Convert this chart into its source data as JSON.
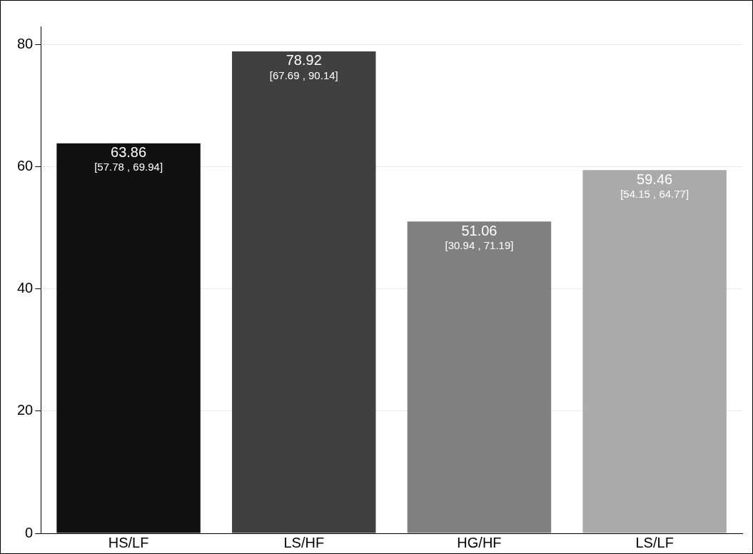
{
  "chart_data": {
    "type": "bar",
    "categories": [
      "HS/LF",
      "LS/HF",
      "HG/HF",
      "LS/LF"
    ],
    "values": [
      63.86,
      78.92,
      51.06,
      59.46
    ],
    "colors": [
      "#111111",
      "#404040",
      "#808080",
      "#aaaaaa"
    ],
    "data_labels": true,
    "annotations": [
      {
        "text": "[57.78 , 69.94]",
        "x": "HS/LF",
        "y": 63.86
      },
      {
        "text": "[67.69 , 90.14]",
        "x": "LS/HF",
        "y": 78.92
      },
      {
        "text": "[30.94 , 71.19]",
        "x": "HG/HF",
        "y": 51.06
      },
      {
        "text": "[54.15 , 64.77]",
        "x": "LS/LF",
        "y": 59.46
      }
    ],
    "ylim": [
      0,
      83
    ],
    "yticks": [
      0,
      20,
      40,
      60,
      80
    ],
    "grid": "y",
    "legend": false
  }
}
